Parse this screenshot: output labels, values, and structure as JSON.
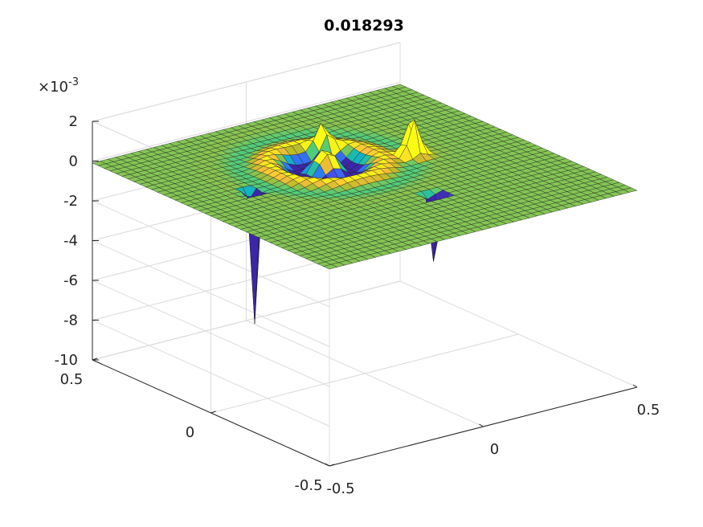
{
  "chart_data": {
    "type": "surface",
    "title": "0.018293",
    "colormap": "parula",
    "x_range": [
      -0.5,
      0.5
    ],
    "y_range": [
      -0.5,
      0.5
    ],
    "z_range": [
      -0.01,
      0.002
    ],
    "z_exponent_label": "×10",
    "z_exponent_power": "-3",
    "x_ticks": [
      {
        "value": -0.5,
        "label": "-0.5"
      },
      {
        "value": 0,
        "label": "0"
      },
      {
        "value": 0.5,
        "label": "0.5"
      }
    ],
    "y_ticks": [
      {
        "value": -0.5,
        "label": "-0.5"
      },
      {
        "value": 0,
        "label": "0"
      },
      {
        "value": 0.5,
        "label": "0.5"
      }
    ],
    "z_ticks": [
      {
        "value": 0.002,
        "label": "2"
      },
      {
        "value": 0,
        "label": "0"
      },
      {
        "value": -0.002,
        "label": "-2"
      },
      {
        "value": -0.004,
        "label": "-4"
      },
      {
        "value": -0.006,
        "label": "-6"
      },
      {
        "value": -0.008,
        "label": "-8"
      },
      {
        "value": -0.01,
        "label": "-10"
      }
    ],
    "grid": true,
    "features": [
      {
        "kind": "spike",
        "x": -0.3,
        "y": 0.08,
        "z": -0.0078
      },
      {
        "kind": "spike",
        "x": 0.06,
        "y": -0.22,
        "z": -0.0075
      },
      {
        "kind": "bump",
        "x": 0.05,
        "y": 0.24,
        "z": 0.0012
      },
      {
        "kind": "bump",
        "x": 0.2,
        "y": 0.06,
        "z": 0.0022
      },
      {
        "kind": "ripple",
        "x": -0.02,
        "y": 0.14,
        "z": 0.0007
      }
    ]
  }
}
